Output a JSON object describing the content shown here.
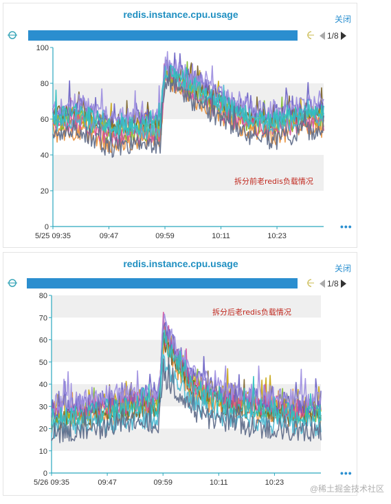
{
  "charts": [
    {
      "title": "redis.instance.cpu.usage",
      "close_label": "关闭",
      "pager": "1/8",
      "annotation": "拆分前老redis负载情况",
      "more_label": "•••",
      "x_ticks": [
        "5/25 09:35",
        "09:47",
        "09:59",
        "10:11",
        "10:23"
      ],
      "y_ticks": [
        "0",
        "20",
        "40",
        "60",
        "80",
        "100"
      ]
    },
    {
      "title": "redis.instance.cpu.usage",
      "close_label": "关闭",
      "pager": "1/8",
      "annotation": "拆分后老redis负载情况",
      "more_label": "•••",
      "x_ticks": [
        "5/26 09:35",
        "09:47",
        "09:59",
        "10:11",
        "10:23"
      ],
      "y_ticks": [
        "0",
        "10",
        "20",
        "30",
        "40",
        "50",
        "60",
        "70",
        "80"
      ]
    }
  ],
  "watermark": "@稀土掘金技术社区",
  "colors": {
    "title": "#1f8fc1",
    "zoom_bar": "#2b8ecf",
    "annotation": "#c0271d",
    "series": [
      "#e8903c",
      "#7fb82c",
      "#c8a615",
      "#7a6228",
      "#d6509c",
      "#6b62c4",
      "#9d8ee0",
      "#49b7d0",
      "#2fc0c0",
      "#5f6c8a"
    ]
  },
  "chart_data": [
    {
      "type": "line",
      "title": "redis.instance.cpu.usage",
      "xlabel": "",
      "ylabel": "",
      "x": [
        "09:35",
        "09:41",
        "09:47",
        "09:53",
        "09:59",
        "10:05",
        "10:11",
        "10:17",
        "10:23",
        "10:29",
        "10:33"
      ],
      "ylim": [
        0,
        100
      ],
      "grid": "alternating horizontal bands",
      "series": [
        {
          "values": [
            52,
            54,
            46,
            48,
            84,
            72,
            62,
            52,
            50,
            56,
            55
          ]
        },
        {
          "values": [
            57,
            60,
            52,
            53,
            86,
            76,
            66,
            58,
            56,
            60,
            60
          ]
        },
        {
          "values": [
            60,
            63,
            55,
            56,
            87,
            78,
            69,
            60,
            58,
            62,
            62
          ]
        },
        {
          "values": [
            62,
            66,
            57,
            58,
            88,
            80,
            70,
            62,
            60,
            64,
            64
          ]
        },
        {
          "values": [
            55,
            58,
            50,
            51,
            85,
            74,
            64,
            56,
            54,
            58,
            58
          ]
        },
        {
          "values": [
            64,
            68,
            59,
            60,
            90,
            82,
            72,
            64,
            62,
            66,
            66
          ]
        },
        {
          "values": [
            66,
            70,
            61,
            62,
            91,
            83,
            74,
            66,
            64,
            68,
            68
          ]
        },
        {
          "values": [
            58,
            61,
            53,
            54,
            87,
            77,
            67,
            59,
            57,
            61,
            61
          ]
        },
        {
          "values": [
            61,
            64,
            56,
            57,
            88,
            79,
            69,
            61,
            59,
            63,
            63
          ]
        },
        {
          "values": [
            49,
            52,
            44,
            45,
            82,
            70,
            60,
            50,
            48,
            54,
            53
          ]
        }
      ]
    },
    {
      "type": "line",
      "title": "redis.instance.cpu.usage",
      "xlabel": "",
      "ylabel": "",
      "x": [
        "09:35",
        "09:41",
        "09:47",
        "09:53",
        "09:59",
        "10:05",
        "10:11",
        "10:17",
        "10:23",
        "10:29",
        "10:33"
      ],
      "ylim": [
        0,
        80
      ],
      "grid": "alternating horizontal bands",
      "series": [
        {
          "values": [
            23,
            24,
            26,
            28,
            58,
            36,
            30,
            28,
            26,
            25,
            24
          ]
        },
        {
          "values": [
            26,
            27,
            29,
            31,
            62,
            40,
            33,
            31,
            29,
            28,
            27
          ]
        },
        {
          "values": [
            28,
            29,
            31,
            33,
            64,
            42,
            35,
            33,
            31,
            30,
            29
          ]
        },
        {
          "values": [
            24,
            25,
            27,
            29,
            60,
            38,
            31,
            29,
            27,
            26,
            25
          ]
        },
        {
          "values": [
            27,
            28,
            30,
            32,
            63,
            41,
            34,
            32,
            30,
            29,
            28
          ]
        },
        {
          "values": [
            29,
            30,
            33,
            35,
            66,
            44,
            37,
            34,
            32,
            31,
            30
          ]
        },
        {
          "values": [
            31,
            32,
            35,
            37,
            68,
            46,
            39,
            36,
            34,
            33,
            32
          ]
        },
        {
          "values": [
            20,
            21,
            22,
            24,
            50,
            32,
            26,
            24,
            22,
            22,
            21
          ]
        },
        {
          "values": [
            25,
            26,
            28,
            30,
            61,
            39,
            32,
            30,
            28,
            27,
            26
          ]
        },
        {
          "values": [
            18,
            19,
            20,
            22,
            44,
            28,
            23,
            21,
            20,
            19,
            19
          ]
        }
      ]
    }
  ]
}
